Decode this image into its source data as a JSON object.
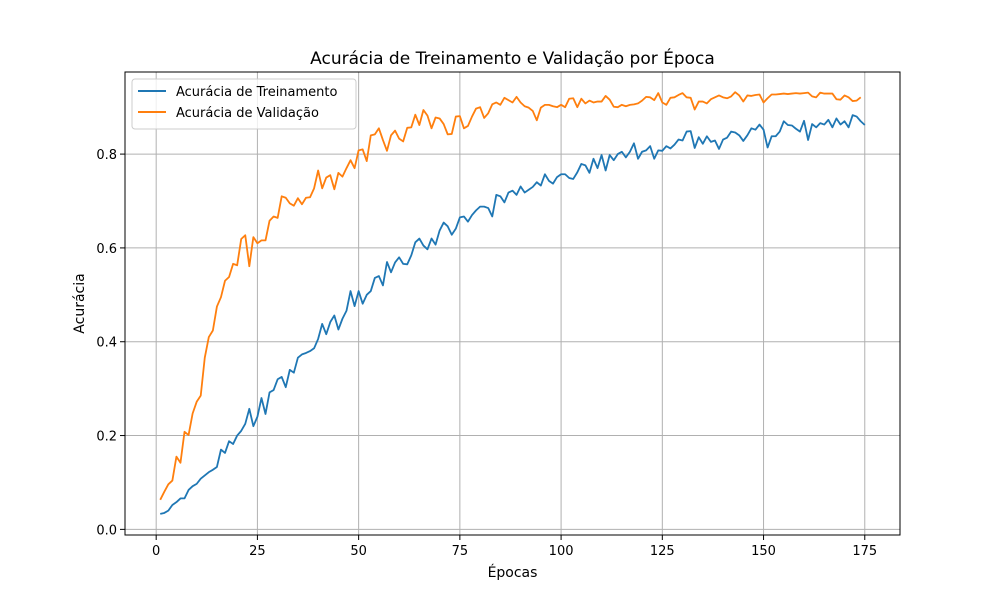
{
  "chart_data": {
    "type": "line",
    "title": "Acurácia de Treinamento e Validação por Época",
    "xlabel": "Épocas",
    "ylabel": "Acurácia",
    "xlim": [
      -7.7,
      183.7
    ],
    "ylim": [
      -0.012,
      0.975
    ],
    "xticks": [
      0,
      25,
      50,
      75,
      100,
      125,
      150,
      175
    ],
    "yticks": [
      0.0,
      0.2,
      0.4,
      0.6,
      0.8
    ],
    "xtick_labels": [
      "0",
      "25",
      "50",
      "75",
      "100",
      "125",
      "150",
      "175"
    ],
    "ytick_labels": [
      "0.0",
      "0.2",
      "0.4",
      "0.6",
      "0.8"
    ],
    "grid": true,
    "legend_position": "top-left",
    "x_start": 1,
    "x_step": 1,
    "series": [
      {
        "name": "Acurácia de Treinamento",
        "color": "#1f77b4",
        "values": [
          0.033,
          0.035,
          0.04,
          0.052,
          0.058,
          0.066,
          0.066,
          0.084,
          0.092,
          0.097,
          0.108,
          0.115,
          0.122,
          0.127,
          0.133,
          0.17,
          0.163,
          0.188,
          0.182,
          0.2,
          0.21,
          0.225,
          0.257,
          0.22,
          0.24,
          0.28,
          0.246,
          0.292,
          0.297,
          0.32,
          0.325,
          0.303,
          0.34,
          0.334,
          0.366,
          0.373,
          0.376,
          0.38,
          0.386,
          0.406,
          0.438,
          0.416,
          0.442,
          0.456,
          0.426,
          0.449,
          0.466,
          0.508,
          0.476,
          0.508,
          0.481,
          0.5,
          0.508,
          0.536,
          0.54,
          0.52,
          0.57,
          0.548,
          0.569,
          0.58,
          0.566,
          0.565,
          0.584,
          0.612,
          0.62,
          0.605,
          0.597,
          0.62,
          0.607,
          0.637,
          0.654,
          0.646,
          0.628,
          0.641,
          0.665,
          0.667,
          0.656,
          0.67,
          0.68,
          0.688,
          0.688,
          0.685,
          0.667,
          0.713,
          0.71,
          0.697,
          0.718,
          0.722,
          0.713,
          0.731,
          0.718,
          0.724,
          0.73,
          0.74,
          0.733,
          0.757,
          0.743,
          0.737,
          0.751,
          0.757,
          0.757,
          0.749,
          0.747,
          0.761,
          0.779,
          0.776,
          0.76,
          0.79,
          0.77,
          0.798,
          0.765,
          0.798,
          0.787,
          0.8,
          0.805,
          0.793,
          0.805,
          0.823,
          0.79,
          0.805,
          0.808,
          0.817,
          0.79,
          0.808,
          0.807,
          0.817,
          0.812,
          0.82,
          0.831,
          0.829,
          0.848,
          0.849,
          0.813,
          0.836,
          0.822,
          0.838,
          0.826,
          0.829,
          0.811,
          0.831,
          0.835,
          0.848,
          0.846,
          0.84,
          0.828,
          0.84,
          0.855,
          0.852,
          0.863,
          0.852,
          0.814,
          0.838,
          0.838,
          0.848,
          0.87,
          0.862,
          0.861,
          0.854,
          0.848,
          0.871,
          0.83,
          0.864,
          0.857,
          0.866,
          0.863,
          0.873,
          0.857,
          0.876,
          0.863,
          0.87,
          0.857,
          0.883,
          0.88,
          0.87,
          0.862
        ]
      },
      {
        "name": "Acurácia de Validação",
        "color": "#ff7f0e",
        "values": [
          0.063,
          0.08,
          0.096,
          0.104,
          0.155,
          0.142,
          0.208,
          0.201,
          0.247,
          0.272,
          0.285,
          0.366,
          0.41,
          0.424,
          0.475,
          0.495,
          0.53,
          0.538,
          0.566,
          0.563,
          0.619,
          0.627,
          0.561,
          0.623,
          0.61,
          0.616,
          0.616,
          0.658,
          0.667,
          0.664,
          0.71,
          0.707,
          0.695,
          0.69,
          0.706,
          0.693,
          0.707,
          0.708,
          0.727,
          0.765,
          0.727,
          0.75,
          0.755,
          0.725,
          0.76,
          0.752,
          0.77,
          0.787,
          0.77,
          0.808,
          0.81,
          0.785,
          0.84,
          0.842,
          0.855,
          0.83,
          0.807,
          0.84,
          0.85,
          0.833,
          0.827,
          0.856,
          0.857,
          0.884,
          0.862,
          0.894,
          0.882,
          0.855,
          0.878,
          0.876,
          0.864,
          0.842,
          0.843,
          0.88,
          0.881,
          0.855,
          0.86,
          0.88,
          0.897,
          0.9,
          0.877,
          0.887,
          0.906,
          0.91,
          0.905,
          0.92,
          0.915,
          0.91,
          0.922,
          0.91,
          0.902,
          0.899,
          0.892,
          0.872,
          0.899,
          0.905,
          0.905,
          0.902,
          0.9,
          0.905,
          0.9,
          0.918,
          0.919,
          0.9,
          0.918,
          0.908,
          0.914,
          0.91,
          0.912,
          0.912,
          0.924,
          0.916,
          0.901,
          0.9,
          0.905,
          0.902,
          0.905,
          0.906,
          0.908,
          0.914,
          0.922,
          0.921,
          0.915,
          0.93,
          0.91,
          0.905,
          0.92,
          0.921,
          0.926,
          0.93,
          0.921,
          0.92,
          0.895,
          0.912,
          0.912,
          0.908,
          0.917,
          0.921,
          0.925,
          0.921,
          0.919,
          0.923,
          0.932,
          0.925,
          0.912,
          0.925,
          0.924,
          0.926,
          0.927,
          0.91,
          0.919,
          0.927,
          0.927,
          0.928,
          0.929,
          0.928,
          0.929,
          0.93,
          0.929,
          0.93,
          0.931,
          0.923,
          0.921,
          0.931,
          0.929,
          0.929,
          0.929,
          0.917,
          0.916,
          0.925,
          0.921,
          0.913,
          0.914,
          0.921
        ]
      }
    ]
  }
}
